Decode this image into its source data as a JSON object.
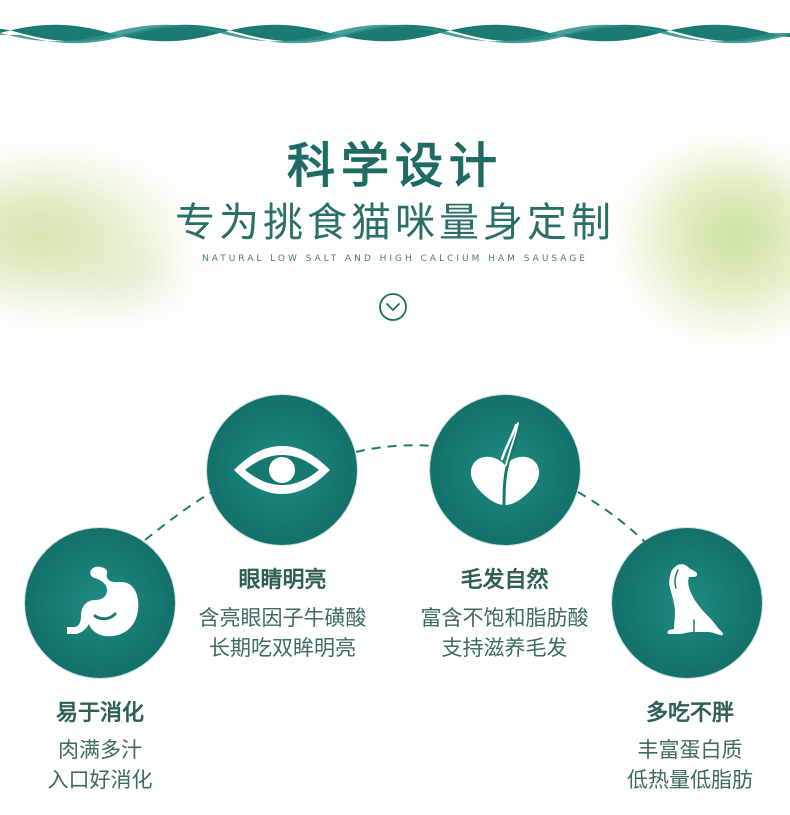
{
  "header": {
    "title": "科学设计",
    "subtitle": "专为挑食猫咪量身定制",
    "english": "NATURAL LOW SALT AND HIGH CALCIUM HAM SAUSAGE"
  },
  "features": [
    {
      "icon": "stomach-icon",
      "title": "易于消化",
      "line1": "肉满多汁",
      "line2": "入口好消化"
    },
    {
      "icon": "eye-icon",
      "title": "眼睛明亮",
      "line1": "含亮眼因子牛磺酸",
      "line2": "长期吃双眸明亮"
    },
    {
      "icon": "hair-icon",
      "title": "毛发自然",
      "line1": "富含不饱和脂肪酸",
      "line2": "支持滋养毛发"
    },
    {
      "icon": "dog-icon",
      "title": "多吃不胖",
      "line1": "丰富蛋白质",
      "line2": "低热量低脂肪"
    }
  ],
  "colors": {
    "teal": "#157970",
    "dark_teal": "#0f6560",
    "text": "#2e5f58"
  }
}
